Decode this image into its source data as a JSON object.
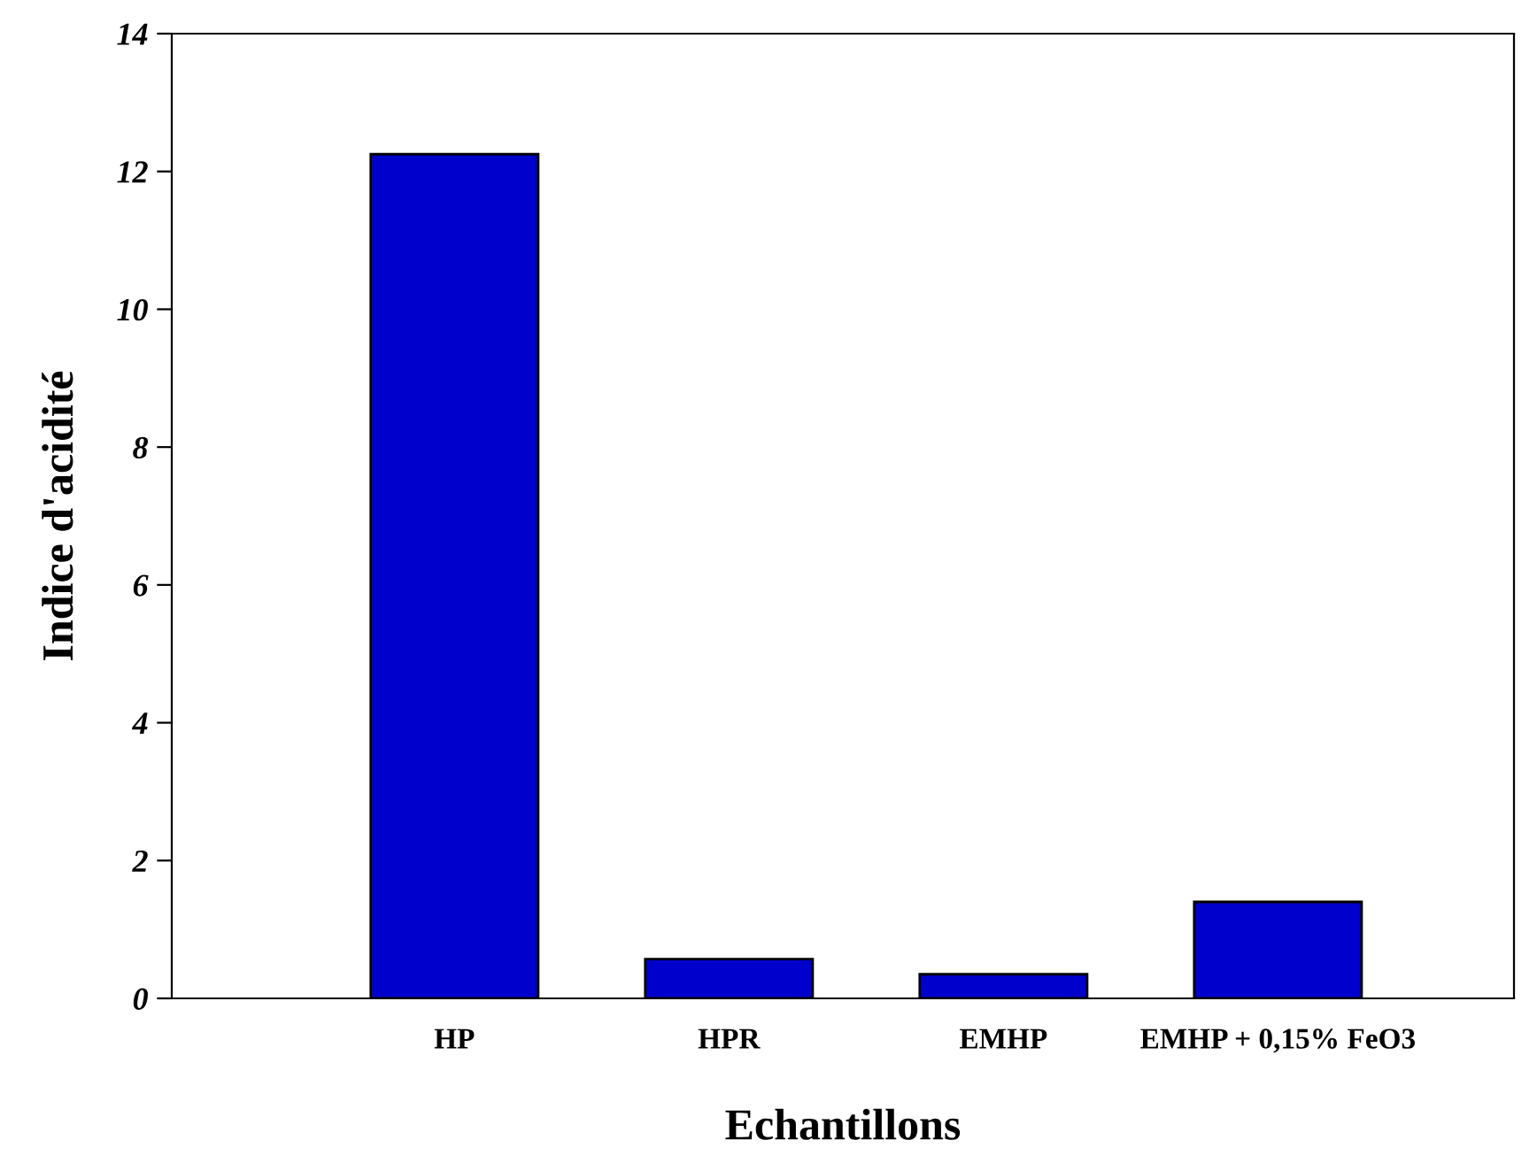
{
  "chart_data": {
    "type": "bar",
    "xlabel": "Echantillons",
    "ylabel": "Indice d'acidité",
    "categories": [
      "HP",
      "HPR",
      "EMHP",
      "EMHP + 0,15% FeO3"
    ],
    "values": [
      12.25,
      0.57,
      0.35,
      1.4
    ],
    "color": "#0000cc",
    "ylim": [
      0,
      14
    ],
    "yticks": [
      0,
      2,
      4,
      6,
      8,
      10,
      12,
      14
    ],
    "grid": false,
    "legend": false
  }
}
